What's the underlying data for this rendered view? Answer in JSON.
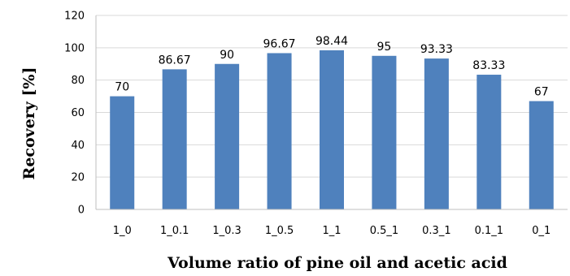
{
  "chart_data": {
    "type": "bar",
    "title": "",
    "xlabel": "Volume ratio of pine oil and acetic acid",
    "ylabel": "Recovery [%]",
    "categories": [
      "1_0",
      "1_0.1",
      "1_0.3",
      "1_0.5",
      "1_1",
      "0.5_1",
      "0.3_1",
      "0.1_1",
      "0_1"
    ],
    "values": [
      70,
      86.67,
      90,
      96.67,
      98.44,
      95,
      93.33,
      83.33,
      67
    ],
    "data_labels": [
      "70",
      "86.67",
      "90",
      "96.67",
      "98.44",
      "95",
      "93.33",
      "83.33",
      "67"
    ],
    "ylim": [
      0,
      120
    ],
    "yticks": [
      0,
      20,
      40,
      60,
      80,
      100,
      120
    ],
    "grid": true,
    "legend": "none",
    "bar_color": "#4F81BD",
    "grid_color": "#D9D9D9"
  }
}
